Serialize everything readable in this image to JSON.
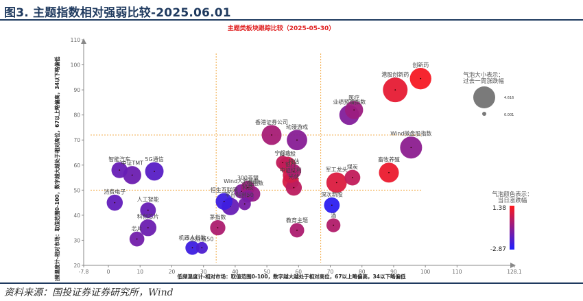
{
  "figure": {
    "title": "图3. 主题指数相对强弱比较-2025.06.01",
    "source": "资料来源：国投证券证券研究所，Wind"
  },
  "chart_data": {
    "type": "scatter",
    "title": "主题类板块跟踪比较（2025-05-30）",
    "xlabel": "低频温度计-相对市场：取值范围0-100，数字越大越处于相对高位，67以上略偏高，34以下略偏低",
    "ylabel": "高频温度计-相对市场：取值范围0-100，数字越大越处于相对高位，67以上略偏高，34以下略偏低",
    "xlim": [
      -7.8,
      128.1
    ],
    "ylim": [
      20,
      110
    ],
    "x_ticks": [
      "-7.8",
      "0",
      "10",
      "20",
      "30",
      "40",
      "50",
      "60",
      "70",
      "80",
      "90",
      "100",
      "110",
      "128.1"
    ],
    "y_ticks": [
      "20",
      "30",
      "40",
      "50",
      "60",
      "70",
      "80",
      "90",
      "100",
      "110"
    ],
    "reference_lines": {
      "x": [
        34,
        67
      ],
      "y": [
        50,
        72
      ]
    },
    "grid": false,
    "colors": {
      "high": "#ff1a1a",
      "low": "#1f1fff",
      "axis": "#888888",
      "ref_line": "#f0a030",
      "title": "#e02020"
    },
    "size_legend": {
      "label": "气泡大小表示：\n过去一周涨跌幅",
      "max_label": "4.616",
      "min_label": "0.001"
    },
    "color_legend": {
      "label": "气泡颜色表示：\n当日涨跌幅",
      "max_label": "1.38",
      "min_label": "-2.87"
    },
    "points": [
      {
        "name": "创新药",
        "x": 98.5,
        "y": 94.5,
        "size": 3.2,
        "color": 1.2
      },
      {
        "name": "港股创新药",
        "x": 90.5,
        "y": 90.0,
        "size": 4.6,
        "color": 0.9
      },
      {
        "name": "医疗",
        "x": 77.5,
        "y": 82.0,
        "size": 2.0,
        "color": -0.5
      },
      {
        "name": "业绩预增指数",
        "x": 76.0,
        "y": 80.0,
        "size": 2.6,
        "color": -1.0
      },
      {
        "name": "Wind微盘股指数",
        "x": 95.5,
        "y": 67.0,
        "size": 3.4,
        "color": -0.8
      },
      {
        "name": "畜牧养殖",
        "x": 88.5,
        "y": 57.0,
        "size": 2.6,
        "color": 1.0
      },
      {
        "name": "香港证券公司",
        "x": 51.5,
        "y": 72.0,
        "size": 2.6,
        "color": -0.3
      },
      {
        "name": "动漫游戏",
        "x": 59.5,
        "y": 70.0,
        "size": 2.8,
        "color": -0.9
      },
      {
        "name": "宁组合",
        "x": 55.0,
        "y": 61.0,
        "size": 0.8,
        "color": 0.2
      },
      {
        "name": "白马股",
        "x": 56.5,
        "y": 60.0,
        "size": 1.6,
        "color": 0.4
      },
      {
        "name": "特估",
        "x": 58.5,
        "y": 57.5,
        "size": 1.0,
        "color": -0.2
      },
      {
        "name": "银行",
        "x": 57.5,
        "y": 56.0,
        "size": 1.3,
        "color": 0.5
      },
      {
        "name": "中证红利",
        "x": 57.5,
        "y": 53.5,
        "size": 1.5,
        "color": 0.6
      },
      {
        "name": "军工龙头",
        "x": 72.0,
        "y": 53.0,
        "size": 2.8,
        "color": 0.7
      },
      {
        "name": "煤炭",
        "x": 77.0,
        "y": 55.0,
        "size": 1.3,
        "color": 0.2
      },
      {
        "name": "光伏",
        "x": 58.5,
        "y": 51.0,
        "size": 1.4,
        "color": 0.1
      },
      {
        "name": "深次新股",
        "x": 70.5,
        "y": 44.0,
        "size": 1.3,
        "color": -2.6
      },
      {
        "name": "酒",
        "x": 71.0,
        "y": 36.0,
        "size": 0.9,
        "color": -0.1
      },
      {
        "name": "教育主题",
        "x": 59.5,
        "y": 34.0,
        "size": 1.0,
        "color": -0.2
      },
      {
        "name": "Wind人气指数",
        "x": 42.0,
        "y": 49.5,
        "size": 1.0,
        "color": -1.0
      },
      {
        "name": "300非银",
        "x": 44.0,
        "y": 51.0,
        "size": 0.9,
        "color": -0.5
      },
      {
        "name": "大盘指数",
        "x": 45.5,
        "y": 48.5,
        "size": 1.2,
        "color": -0.6
      },
      {
        "name": "科技",
        "x": 44.0,
        "y": 47.5,
        "size": 0.6,
        "color": -0.9
      },
      {
        "name": "科创50",
        "x": 43.0,
        "y": 44.5,
        "size": 0.6,
        "color": -1.2
      },
      {
        "name": "恒生互联网",
        "x": 36.5,
        "y": 45.5,
        "size": 1.6,
        "color": -2.3
      },
      {
        "name": "平台",
        "x": 38.5,
        "y": 43.5,
        "size": 1.8,
        "color": -1.5
      },
      {
        "name": "茅指数",
        "x": 34.5,
        "y": 35.0,
        "size": 1.2,
        "color": -0.2
      },
      {
        "name": "智能汽车",
        "x": 3.5,
        "y": 58.0,
        "size": 1.4,
        "color": -1.5
      },
      {
        "name": "中证TMT",
        "x": 7.5,
        "y": 56.0,
        "size": 2.0,
        "color": -1.4
      },
      {
        "name": "5G通信",
        "x": 14.5,
        "y": 57.5,
        "size": 2.1,
        "color": -1.8
      },
      {
        "name": "消费电子",
        "x": 2.0,
        "y": 45.0,
        "size": 1.4,
        "color": -1.6
      },
      {
        "name": "人工智能",
        "x": 12.5,
        "y": 42.0,
        "size": 1.3,
        "color": -1.5
      },
      {
        "name": "科创芯片",
        "x": 12.5,
        "y": 35.0,
        "size": 1.6,
        "color": -1.4
      },
      {
        "name": "芯片",
        "x": 9.0,
        "y": 30.5,
        "size": 1.1,
        "color": -1.3
      },
      {
        "name": "机器人指数",
        "x": 26.5,
        "y": 27.0,
        "size": 0.9,
        "color": -2.3
      },
      {
        "name": "创业板50",
        "x": 29.5,
        "y": 27.0,
        "size": 0.5,
        "color": -2.0
      }
    ]
  }
}
